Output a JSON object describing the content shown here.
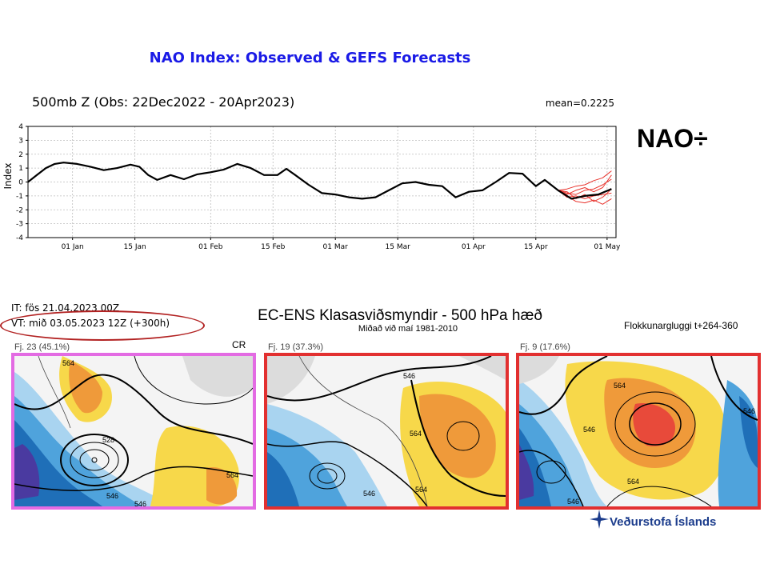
{
  "header": {
    "title": "NAO Index: Observed & GEFS Forecasts",
    "nao_symbol": "NAO÷"
  },
  "chart_data": {
    "type": "line",
    "title": "500mb Z (Obs: 22Dec2022 - 20Apr2023)",
    "mean_label": "mean=0.2225",
    "ylabel": "Index",
    "xlabel": "",
    "ylim": [
      -4,
      4
    ],
    "yticks": [
      -4,
      -3,
      -2,
      -1,
      0,
      1,
      2,
      3,
      4
    ],
    "x_start": "2022-12-22",
    "x_end": "2023-05-03",
    "x_ticks": [
      {
        "label": "01 Jan",
        "date": "2023-01-01"
      },
      {
        "label": "15 Jan",
        "date": "2023-01-15"
      },
      {
        "label": "01 Feb",
        "date": "2023-02-01"
      },
      {
        "label": "15 Feb",
        "date": "2023-02-15"
      },
      {
        "label": "01 Mar",
        "date": "2023-03-01"
      },
      {
        "label": "15 Mar",
        "date": "2023-03-15"
      },
      {
        "label": "01 Apr",
        "date": "2023-04-01"
      },
      {
        "label": "15 Apr",
        "date": "2023-04-15"
      },
      {
        "label": "01 May",
        "date": "2023-05-01"
      }
    ],
    "grid": true,
    "series": [
      {
        "color": "#000000",
        "points": [
          [
            "2022-12-22",
            0.0
          ],
          [
            "2022-12-24",
            0.5
          ],
          [
            "2022-12-26",
            1.0
          ],
          [
            "2022-12-28",
            1.3
          ],
          [
            "2022-12-30",
            1.4
          ],
          [
            "2023-01-02",
            1.3
          ],
          [
            "2023-01-05",
            1.1
          ],
          [
            "2023-01-08",
            0.85
          ],
          [
            "2023-01-11",
            1.0
          ],
          [
            "2023-01-14",
            1.25
          ],
          [
            "2023-01-16",
            1.1
          ],
          [
            "2023-01-18",
            0.5
          ],
          [
            "2023-01-20",
            0.15
          ],
          [
            "2023-01-23",
            0.5
          ],
          [
            "2023-01-26",
            0.2
          ],
          [
            "2023-01-29",
            0.55
          ],
          [
            "2023-02-01",
            0.7
          ],
          [
            "2023-02-04",
            0.9
          ],
          [
            "2023-02-07",
            1.3
          ],
          [
            "2023-02-10",
            1.0
          ],
          [
            "2023-02-13",
            0.5
          ],
          [
            "2023-02-16",
            0.5
          ],
          [
            "2023-02-18",
            0.95
          ],
          [
            "2023-02-20",
            0.5
          ],
          [
            "2023-02-23",
            -0.2
          ],
          [
            "2023-02-26",
            -0.8
          ],
          [
            "2023-03-01",
            -0.9
          ],
          [
            "2023-03-04",
            -1.1
          ],
          [
            "2023-03-07",
            -1.2
          ],
          [
            "2023-03-10",
            -1.1
          ],
          [
            "2023-03-13",
            -0.6
          ],
          [
            "2023-03-16",
            -0.1
          ],
          [
            "2023-03-19",
            0.0
          ],
          [
            "2023-03-22",
            -0.2
          ],
          [
            "2023-03-25",
            -0.3
          ],
          [
            "2023-03-28",
            -1.1
          ],
          [
            "2023-03-31",
            -0.7
          ],
          [
            "2023-04-03",
            -0.6
          ],
          [
            "2023-04-06",
            0.0
          ],
          [
            "2023-04-09",
            0.65
          ],
          [
            "2023-04-12",
            0.6
          ],
          [
            "2023-04-15",
            -0.3
          ],
          [
            "2023-04-17",
            0.15
          ],
          [
            "2023-04-20",
            -0.6
          ],
          [
            "2023-04-23",
            -1.2
          ],
          [
            "2023-04-26",
            -1.0
          ],
          [
            "2023-04-29",
            -0.9
          ],
          [
            "2023-05-02",
            -0.5
          ]
        ]
      },
      {
        "color": "#e8342e",
        "points": [
          [
            "2023-04-20",
            -0.6
          ],
          [
            "2023-04-22",
            -0.5
          ],
          [
            "2023-04-24",
            -0.3
          ],
          [
            "2023-04-26",
            -0.2
          ],
          [
            "2023-04-28",
            0.1
          ],
          [
            "2023-04-30",
            0.3
          ],
          [
            "2023-05-02",
            0.8
          ]
        ]
      },
      {
        "color": "#e8342e",
        "points": [
          [
            "2023-04-20",
            -0.6
          ],
          [
            "2023-04-22",
            -1.0
          ],
          [
            "2023-04-24",
            -1.4
          ],
          [
            "2023-04-26",
            -1.5
          ],
          [
            "2023-04-28",
            -1.3
          ],
          [
            "2023-04-30",
            -1.6
          ],
          [
            "2023-05-02",
            -1.2
          ]
        ]
      },
      {
        "color": "#e8342e",
        "points": [
          [
            "2023-04-20",
            -0.6
          ],
          [
            "2023-04-22",
            -0.8
          ],
          [
            "2023-04-24",
            -0.9
          ],
          [
            "2023-04-26",
            -0.6
          ],
          [
            "2023-04-28",
            -0.5
          ],
          [
            "2023-04-30",
            -0.2
          ],
          [
            "2023-05-02",
            0.2
          ]
        ]
      },
      {
        "color": "#e8342e",
        "points": [
          [
            "2023-04-20",
            -0.6
          ],
          [
            "2023-04-22",
            -1.1
          ],
          [
            "2023-04-24",
            -1.0
          ],
          [
            "2023-04-26",
            -1.2
          ],
          [
            "2023-04-28",
            -1.0
          ],
          [
            "2023-04-30",
            -0.9
          ],
          [
            "2023-05-02",
            -0.8
          ]
        ]
      },
      {
        "color": "#e8342e",
        "points": [
          [
            "2023-04-20",
            -0.6
          ],
          [
            "2023-04-22",
            -0.7
          ],
          [
            "2023-04-24",
            -1.2
          ],
          [
            "2023-04-26",
            -0.9
          ],
          [
            "2023-04-28",
            -1.4
          ],
          [
            "2023-04-30",
            -1.1
          ],
          [
            "2023-05-02",
            -0.5
          ]
        ]
      },
      {
        "color": "#e8342e",
        "points": [
          [
            "2023-04-20",
            -0.6
          ],
          [
            "2023-04-22",
            -0.9
          ],
          [
            "2023-04-24",
            -0.6
          ],
          [
            "2023-04-26",
            -0.4
          ],
          [
            "2023-04-28",
            -0.7
          ],
          [
            "2023-04-30",
            -0.4
          ],
          [
            "2023-05-02",
            0.5
          ]
        ]
      }
    ]
  },
  "ensemble": {
    "it_text": "IT: fös 21.04.2023 00Z",
    "vt_text": "VT: mið 03.05.2023 12Z  (+300h)",
    "title": "EC-ENS Klasasviðsmyndir - 500 hPa hæð",
    "subtitle": "Miðað við maí 1981-2010",
    "cluster_window": "Flokkunargluggi t+264-360",
    "cr_label": "CR",
    "panels": [
      {
        "label": "Fj. 23 (45.1%)",
        "border_color": "#e36be3",
        "contours": [
          "528",
          "546",
          "546",
          "564",
          "564"
        ]
      },
      {
        "label": "Fj. 19 (37.3%)",
        "border_color": "#e23030",
        "contours": [
          "546",
          "564",
          "546",
          "564"
        ]
      },
      {
        "label": "Fj. 9 (17.6%)",
        "border_color": "#e23030",
        "contours": [
          "546",
          "564",
          "546",
          "564",
          "546"
        ]
      }
    ]
  },
  "colors": {
    "title_blue": "#1a1ae6",
    "forecast_red": "#e8342e",
    "ellipse_red": "#b22222",
    "logo_blue": "#1b3c8c",
    "anom_warm1": "#f7d84a",
    "anom_warm2": "#ef9a3a",
    "anom_warm3": "#e84a3a",
    "anom_cold1": "#a9d4f0",
    "anom_cold2": "#4fa3dc",
    "anom_cold3": "#1f6fb8"
  },
  "logo": {
    "text": "Veðurstofa Íslands",
    "icon": "vedurstofa-logo-icon"
  }
}
